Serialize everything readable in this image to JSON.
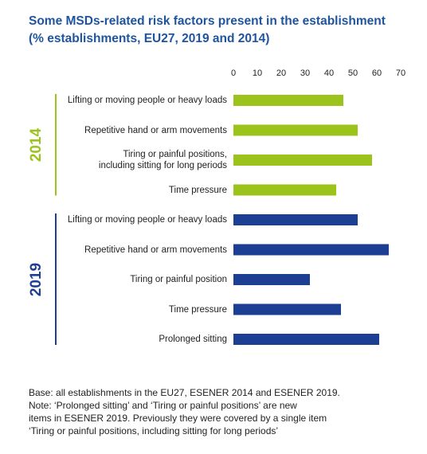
{
  "chart_data": {
    "type": "bar",
    "orientation": "horizontal",
    "title": [
      "Some MSDs-related risk factors present in the establishment",
      "(% establishments, EU27, 2019 and 2014)"
    ],
    "xlim": [
      0,
      70
    ],
    "xticks": [
      0,
      10,
      20,
      30,
      40,
      50,
      60,
      70
    ],
    "grid": false,
    "groups": [
      {
        "name": "2014",
        "color": "#9cc31b",
        "categories": [
          "Lifting or moving people or heavy loads",
          "Repetitive hand or arm movements",
          "Tiring or painful positions,\nincluding sitting for long periods",
          "Time pressure"
        ],
        "values": [
          46,
          52,
          58,
          43
        ]
      },
      {
        "name": "2019",
        "color": "#1d3f93",
        "categories": [
          "Lifting or moving people or heavy loads",
          "Repetitive hand or arm movements",
          "Tiring or painful position",
          "Time pressure",
          "Prolonged sitting"
        ],
        "values": [
          52,
          65,
          32,
          45,
          61
        ]
      }
    ],
    "notes": [
      "Base: all establishments in the EU27, ESENER 2014 and ESENER 2019.",
      "Note: ‘Prolonged sitting’ and ‘Tiring or painful positions’ are new",
      "items in ESENER 2019. Previously they were covered by a single item",
      "‘Tiring or painful positions, including sitting for long periods’"
    ]
  }
}
